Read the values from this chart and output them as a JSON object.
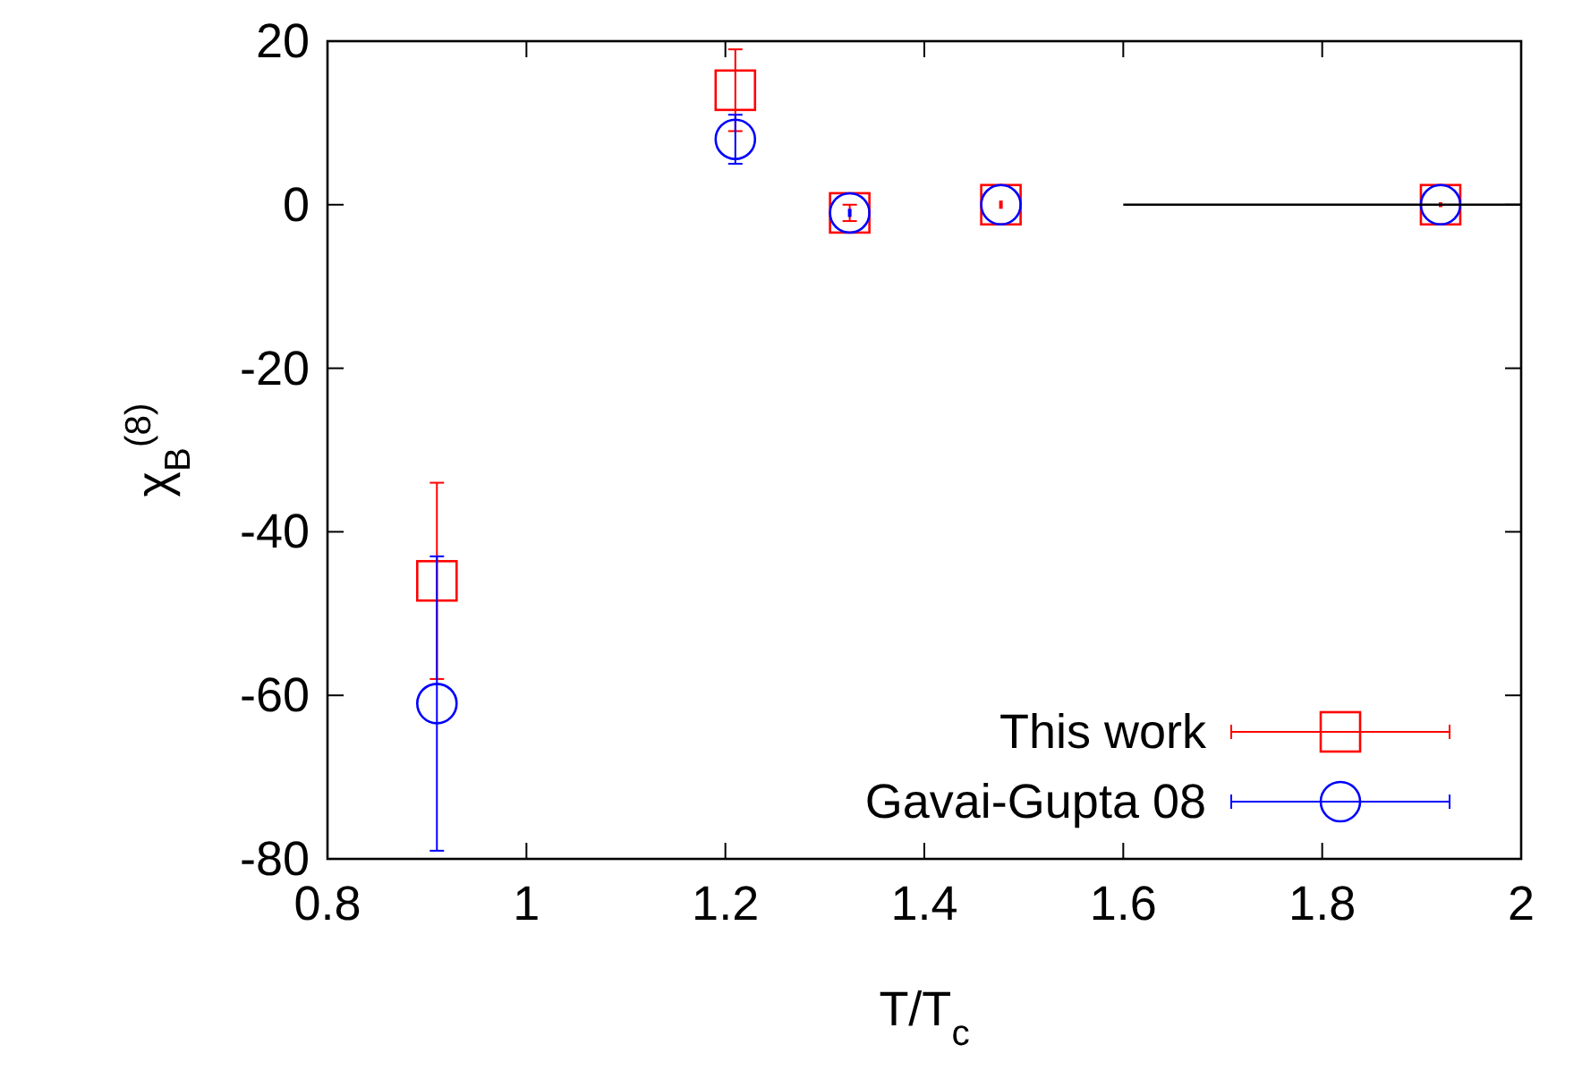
{
  "chart_data": {
    "type": "scatter",
    "xlabel": "T/T$_{c}$",
    "ylabel": "χ$_{B}$$^{(8)}$",
    "xlim": [
      0.8,
      2
    ],
    "xticks": [
      0.8,
      1,
      1.2,
      1.4,
      1.6,
      1.8,
      2
    ],
    "ylim": [
      -80,
      20
    ],
    "yticks": [
      -80,
      -60,
      -40,
      -20,
      0,
      20
    ],
    "grid": false,
    "legend": "bottom right",
    "series": [
      {
        "name": "This work",
        "color": "#ff0000",
        "marker": "square",
        "x": [
          0.91,
          1.21,
          1.325,
          1.477,
          1.919
        ],
        "values": [
          -46,
          14,
          -1,
          0,
          0
        ],
        "errors": [
          12,
          5,
          1,
          0.5,
          0.3
        ]
      },
      {
        "name": "Gavai-Gupta 08",
        "color": "#0000ff",
        "marker": "circle",
        "x": [
          0.91,
          1.21,
          1.325,
          1.477,
          1.919
        ],
        "values": [
          -61,
          8,
          -1,
          0,
          0
        ],
        "errors": [
          18,
          3,
          0.5,
          null,
          null
        ]
      },
      {
        "type": "line",
        "color": "#000000",
        "marker": "none",
        "x": [
          1.6,
          2
        ],
        "values": [
          0,
          0
        ]
      }
    ]
  }
}
